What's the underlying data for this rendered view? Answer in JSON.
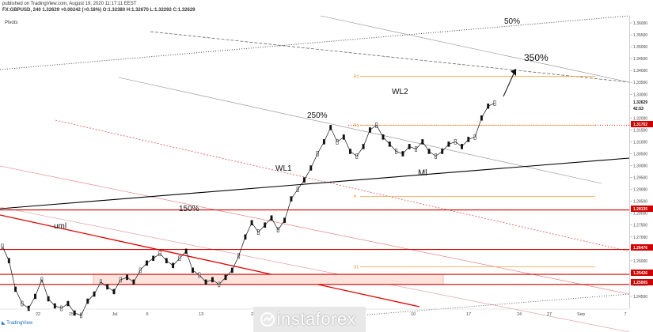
{
  "header": {
    "published": "published on TradingView.com, August 19, 2020 11:17:11 EEST",
    "symbol_line": "FX:GBPUSD, 240  1.32629  +0.00242 (+0.18%)  O:1.32380  H:1.32670  L:1.32292  C:1.32629",
    "indicator": "Pivots"
  },
  "footer": {
    "logo_text": "TradingView"
  },
  "watermark": {
    "text": "instaforex"
  },
  "chart_data": {
    "type": "line",
    "ylim": [
      1.24,
      1.362
    ],
    "y_ticks": [
      "1.36000",
      "1.35500",
      "1.35000",
      "1.34500",
      "1.34000",
      "1.33500",
      "1.33000",
      "1.32500",
      "1.32000",
      "1.31500",
      "1.31000",
      "1.30500",
      "1.30000",
      "1.29500",
      "1.29000",
      "1.28500",
      "1.28000",
      "1.27500",
      "1.27000",
      "1.26500",
      "1.26000",
      "1.25500",
      "1.25000",
      "1.24500",
      "1.24000"
    ],
    "x_ticks": [
      "22",
      "25",
      "Jul",
      "6",
      "13",
      "20",
      "24",
      "3",
      "10",
      "17",
      "24",
      "27",
      "Sep",
      "7"
    ],
    "price_tags": [
      {
        "label": "1.32629",
        "kind": "current"
      },
      {
        "label": "42:53",
        "kind": "timer"
      },
      {
        "label": "1.31702",
        "kind": "level"
      },
      {
        "label": "1.28135",
        "kind": "level"
      },
      {
        "label": "1.26476",
        "kind": "level"
      },
      {
        "label": "1.25426",
        "kind": "level"
      },
      {
        "label": "1.25005",
        "kind": "level"
      }
    ],
    "horizontal_levels": [
      1.28135,
      1.26476,
      1.25426,
      1.25005
    ],
    "support_zone": [
      1.25005,
      1.25426
    ],
    "resistance_dotted": 1.31702,
    "pivot_levels": [
      {
        "label": "R1",
        "value": 1.3375
      },
      {
        "label": "R1",
        "value": 1.317
      },
      {
        "label": "P",
        "value": 1.287
      },
      {
        "label": "S1",
        "value": 1.2575
      }
    ],
    "annotations": [
      {
        "text": "50%"
      },
      {
        "text": "350%"
      },
      {
        "text": "WL2"
      },
      {
        "text": "250%"
      },
      {
        "text": "WL1"
      },
      {
        "text": "Ml"
      },
      {
        "text": "150%"
      },
      {
        "text": "uml"
      }
    ],
    "price_series": [
      1.266,
      1.26,
      1.248,
      1.242,
      1.24,
      1.245,
      1.252,
      1.244,
      1.241,
      1.24,
      1.242,
      1.238,
      1.237,
      1.243,
      1.246,
      1.251,
      1.249,
      1.247,
      1.252,
      1.253,
      1.251,
      1.256,
      1.259,
      1.261,
      1.263,
      1.26,
      1.258,
      1.261,
      1.264,
      1.256,
      1.254,
      1.251,
      1.252,
      1.25,
      1.253,
      1.256,
      1.262,
      1.27,
      1.276,
      1.272,
      1.275,
      1.278,
      1.273,
      1.277,
      1.286,
      1.29,
      1.294,
      1.299,
      1.305,
      1.31,
      1.316,
      1.31,
      1.312,
      1.306,
      1.304,
      1.308,
      1.315,
      1.317,
      1.312,
      1.309,
      1.306,
      1.305,
      1.308,
      1.307,
      1.31,
      1.306,
      1.304,
      1.306,
      1.309,
      1.31,
      1.308,
      1.311,
      1.312,
      1.32,
      1.325,
      1.3263
    ]
  }
}
